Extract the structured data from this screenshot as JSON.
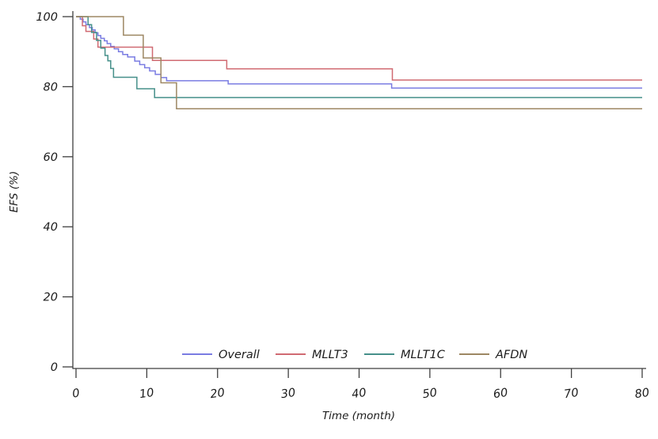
{
  "chart_data": {
    "type": "line",
    "subtype": "kaplan-meier-step",
    "title": "",
    "xlabel": "Time (month)",
    "ylabel": "EFS (%)",
    "xlim": [
      0,
      80
    ],
    "ylim": [
      0,
      100
    ],
    "xticks": [
      0,
      10,
      20,
      30,
      40,
      50,
      60,
      70,
      80
    ],
    "yticks": [
      0,
      20,
      40,
      60,
      80,
      100
    ],
    "grid": false,
    "legend_position": "bottom-center-inside",
    "axis_color": "#3f3f3f",
    "text_color": "#1c1c1c",
    "series": [
      {
        "name": "Overall",
        "color": "#7a7ce2",
        "steps": [
          [
            0,
            100
          ],
          [
            0.6,
            99.3
          ],
          [
            1.0,
            98.5
          ],
          [
            1.4,
            97.7
          ],
          [
            1.9,
            96.9
          ],
          [
            2.3,
            96.2
          ],
          [
            2.7,
            95.4
          ],
          [
            3.1,
            94.6
          ],
          [
            3.5,
            93.8
          ],
          [
            4.0,
            93.1
          ],
          [
            4.4,
            92.3
          ],
          [
            4.9,
            91.5
          ],
          [
            5.4,
            90.8
          ],
          [
            6.0,
            90.0
          ],
          [
            6.6,
            89.2
          ],
          [
            7.3,
            88.5
          ],
          [
            8.3,
            87.3
          ],
          [
            9.0,
            86.3
          ],
          [
            9.7,
            85.4
          ],
          [
            10.4,
            84.5
          ],
          [
            11.2,
            83.5
          ],
          [
            12.0,
            82.6
          ],
          [
            12.8,
            81.7
          ],
          [
            21.5,
            80.8
          ],
          [
            44.6,
            79.6
          ],
          [
            80,
            79.6
          ]
        ]
      },
      {
        "name": "MLLT3",
        "color": "#d06a72",
        "steps": [
          [
            0,
            100
          ],
          [
            0.9,
            97.4
          ],
          [
            1.4,
            95.8
          ],
          [
            2.5,
            93.6
          ],
          [
            3.1,
            91.3
          ],
          [
            10.8,
            87.5
          ],
          [
            21.3,
            85.1
          ],
          [
            44.7,
            81.9
          ],
          [
            80,
            81.9
          ]
        ]
      },
      {
        "name": "MLLT1C",
        "color": "#46908a",
        "steps": [
          [
            0,
            100
          ],
          [
            1.7,
            97.7
          ],
          [
            2.2,
            95.5
          ],
          [
            2.9,
            93.2
          ],
          [
            3.5,
            91.0
          ],
          [
            4.1,
            88.9
          ],
          [
            4.5,
            87.4
          ],
          [
            4.9,
            85.2
          ],
          [
            5.3,
            82.7
          ],
          [
            8.6,
            79.4
          ],
          [
            11.1,
            76.9
          ],
          [
            80,
            76.9
          ]
        ]
      },
      {
        "name": "AFDN",
        "color": "#9d8763",
        "steps": [
          [
            0,
            100
          ],
          [
            6.7,
            94.7
          ],
          [
            9.5,
            88.2
          ],
          [
            12.0,
            81.1
          ],
          [
            14.2,
            73.7
          ],
          [
            80,
            73.7
          ]
        ]
      }
    ]
  }
}
